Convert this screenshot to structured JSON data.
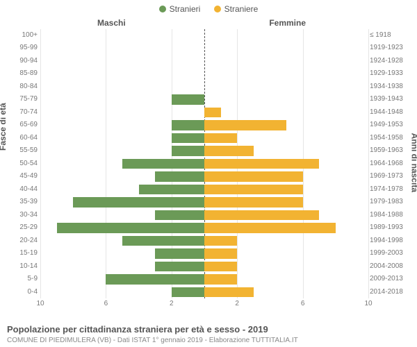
{
  "chart": {
    "type": "population-pyramid",
    "legend": [
      {
        "label": "Stranieri",
        "color": "#6b9a57"
      },
      {
        "label": "Straniere",
        "color": "#f2b332"
      }
    ],
    "header_male": "Maschi",
    "header_female": "Femmine",
    "y_left_label": "Fasce di età",
    "y_right_label": "Anni di nascita",
    "x_max": 10,
    "x_ticks": [
      10,
      6,
      2,
      2,
      6,
      10
    ],
    "grid_at": [
      10,
      6,
      2,
      0,
      2,
      6,
      10
    ],
    "bar_color_male": "#6b9a57",
    "bar_color_female": "#f2b332",
    "background_color": "#ffffff",
    "grid_color": "#e5e5e5",
    "label_fontsize": 10,
    "rows": [
      {
        "age": "100+",
        "birth": "≤ 1918",
        "m": 0,
        "f": 0
      },
      {
        "age": "95-99",
        "birth": "1919-1923",
        "m": 0,
        "f": 0
      },
      {
        "age": "90-94",
        "birth": "1924-1928",
        "m": 0,
        "f": 0
      },
      {
        "age": "85-89",
        "birth": "1929-1933",
        "m": 0,
        "f": 0
      },
      {
        "age": "80-84",
        "birth": "1934-1938",
        "m": 0,
        "f": 0
      },
      {
        "age": "75-79",
        "birth": "1939-1943",
        "m": 2,
        "f": 0
      },
      {
        "age": "70-74",
        "birth": "1944-1948",
        "m": 0,
        "f": 1
      },
      {
        "age": "65-69",
        "birth": "1949-1953",
        "m": 2,
        "f": 5
      },
      {
        "age": "60-64",
        "birth": "1954-1958",
        "m": 2,
        "f": 2
      },
      {
        "age": "55-59",
        "birth": "1959-1963",
        "m": 2,
        "f": 3
      },
      {
        "age": "50-54",
        "birth": "1964-1968",
        "m": 5,
        "f": 7
      },
      {
        "age": "45-49",
        "birth": "1969-1973",
        "m": 3,
        "f": 6
      },
      {
        "age": "40-44",
        "birth": "1974-1978",
        "m": 4,
        "f": 6
      },
      {
        "age": "35-39",
        "birth": "1979-1983",
        "m": 8,
        "f": 6
      },
      {
        "age": "30-34",
        "birth": "1984-1988",
        "m": 3,
        "f": 7
      },
      {
        "age": "25-29",
        "birth": "1989-1993",
        "m": 9,
        "f": 8
      },
      {
        "age": "20-24",
        "birth": "1994-1998",
        "m": 5,
        "f": 2
      },
      {
        "age": "15-19",
        "birth": "1999-2003",
        "m": 3,
        "f": 2
      },
      {
        "age": "10-14",
        "birth": "2004-2008",
        "m": 3,
        "f": 2
      },
      {
        "age": "5-9",
        "birth": "2009-2013",
        "m": 6,
        "f": 2
      },
      {
        "age": "0-4",
        "birth": "2014-2018",
        "m": 2,
        "f": 3
      }
    ]
  },
  "title": "Popolazione per cittadinanza straniera per età e sesso - 2019",
  "subtitle": "COMUNE DI PIEDIMULERA (VB) - Dati ISTAT 1° gennaio 2019 - Elaborazione TUTTITALIA.IT"
}
